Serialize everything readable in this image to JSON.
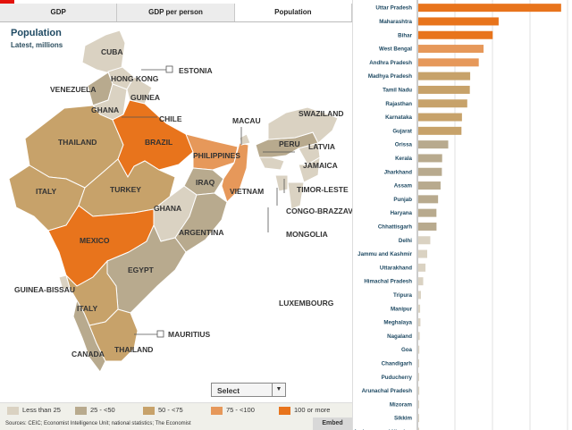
{
  "tabs": [
    "GDP",
    "GDP per person",
    "Population"
  ],
  "active_tab": "Population",
  "title": "Population",
  "subtitle": "Latest, millions",
  "select_label": "Select",
  "embed_label": "Embed",
  "sources_text": "Sources: CEIC; Economist Intelligence Unit; national statistics; The Economist",
  "legend": [
    {
      "label": "Less than 25",
      "color": "#dad2c2"
    },
    {
      "label": "25 - <50",
      "color": "#b8aa8e"
    },
    {
      "label": "50 - <75",
      "color": "#c7a26a"
    },
    {
      "label": "75 - <100",
      "color": "#e6985a"
    },
    {
      "label": "100 or more",
      "color": "#e8741c"
    }
  ],
  "map_labels": [
    "CUBA",
    "ESTONIA",
    "HONG KONG",
    "VENEZUELA",
    "GUINEA",
    "GHANA",
    "CHILE",
    "THAILAND",
    "BRAZIL",
    "MACAU",
    "SWAZILAND",
    "PERU",
    "LATVIA",
    "PHILIPPINES",
    "JAMAICA",
    "ITALY",
    "TURKEY",
    "IRAQ",
    "VIETNAM",
    "TIMOR-LESTE",
    "GHANA",
    "CONGO-BRAZZAVILLE",
    "ARGENTINA",
    "MONGOLIA",
    "MEXICO",
    "EGYPT",
    "GUINEA-BISSAU",
    "LUXEMBOURG",
    "ITALY",
    "MAURITIUS",
    "THAILAND",
    "CANADA"
  ],
  "chart_data": {
    "type": "bar",
    "orientation": "horizontal",
    "title": "Population",
    "subtitle": "Latest, millions",
    "categories": [
      "Uttar Pradesh",
      "Maharashtra",
      "Bihar",
      "West Bengal",
      "Andhra Pradesh",
      "Madhya Pradesh",
      "Tamil Nadu",
      "Rajasthan",
      "Karnataka",
      "Gujarat",
      "Orissa",
      "Kerala",
      "Jharkhand",
      "Assam",
      "Punjab",
      "Haryana",
      "Chhattisgarh",
      "Delhi",
      "Jammu and Kashmir",
      "Uttarakhand",
      "Himachal Pradesh",
      "Tripura",
      "Manipur",
      "Meghalaya",
      "Nagaland",
      "Goa",
      "Chandigarh",
      "Puducherry",
      "Arunachal Pradesh",
      "Mizoram",
      "Sikkim",
      "Andaman and Nicobar"
    ],
    "values": [
      199.8,
      112.4,
      104.1,
      91.3,
      84.6,
      72.6,
      72.1,
      68.5,
      61.1,
      60.4,
      41.9,
      33.4,
      33.0,
      31.2,
      27.7,
      25.4,
      25.5,
      16.8,
      12.5,
      10.1,
      6.9,
      3.7,
      2.6,
      3.0,
      2.0,
      1.5,
      1.1,
      1.2,
      1.4,
      1.1,
      0.6,
      0.4
    ],
    "xlim": [
      0,
      210
    ],
    "gridlines": true
  }
}
